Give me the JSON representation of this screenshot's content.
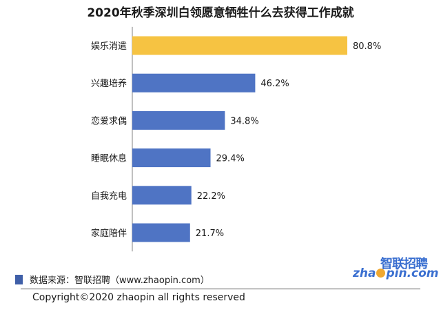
{
  "colors": {
    "highlight_bar": "#f6c342",
    "bar": "#4f74c4",
    "source_swatch": "#3f5fa8",
    "axis": "#808080"
  },
  "chart_data": {
    "type": "bar",
    "orientation": "horizontal",
    "title": "2020年秋季深圳白领愿意牺牲什么去获得工作成就",
    "categories": [
      "娱乐消遣",
      "兴趣培养",
      "恋爱求偶",
      "睡眠休息",
      "自我充电",
      "家庭陪伴"
    ],
    "values": [
      80.8,
      46.2,
      34.8,
      29.4,
      22.2,
      21.7
    ],
    "value_labels": [
      "80.8%",
      "46.2%",
      "34.8%",
      "29.4%",
      "22.2%",
      "21.7%"
    ],
    "highlight_index": 0,
    "xlim": [
      0,
      100
    ],
    "grid": false,
    "legend": "none"
  },
  "footer": {
    "source": "数据来源：智联招聘（www.zhaopin.com）",
    "copyright": "Copyright©2020 zhaopin all rights reserved"
  },
  "logo": {
    "cn": "智联招聘",
    "en_prefix": "zha",
    "en_suffix": "pin.com"
  }
}
